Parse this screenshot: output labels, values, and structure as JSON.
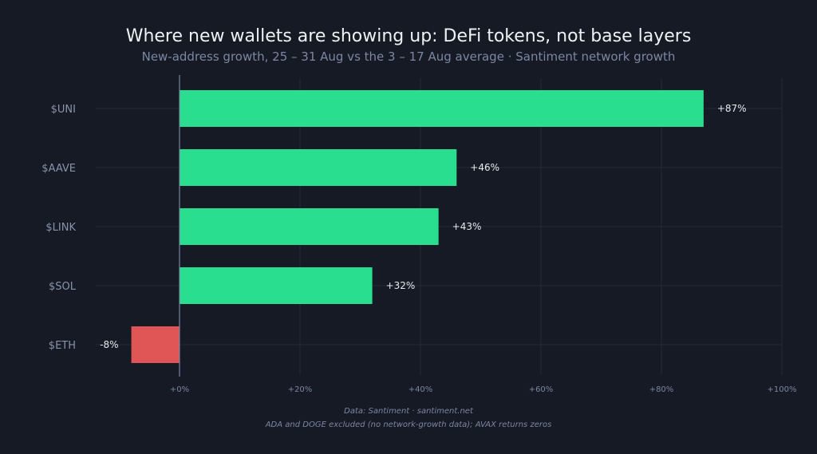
{
  "chart_data": {
    "type": "bar",
    "orientation": "horizontal",
    "title": "Where new wallets are showing up: DeFi tokens, not base layers",
    "subtitle": "New-address growth, 25 – 31 Aug vs the 3 – 17 Aug average · Santiment network growth",
    "categories": [
      "$UNI",
      "$AAVE",
      "$LINK",
      "$SOL",
      "$ETH"
    ],
    "values": [
      87,
      46,
      43,
      32,
      -8
    ],
    "data_labels": [
      "+87%",
      "+46%",
      "+43%",
      "+32%",
      "-8%"
    ],
    "x_ticks": [
      0,
      20,
      40,
      60,
      80,
      100
    ],
    "x_tick_labels": [
      "+0%",
      "+20%",
      "+40%",
      "+60%",
      "+80%",
      "+100%"
    ],
    "xlim": [
      -8,
      100
    ],
    "grid": true,
    "colors": {
      "positive": "#29df8f",
      "negative": "#e05656",
      "background": "#151a24",
      "grid": "#232a38",
      "zero_line": "#7d86a3"
    }
  },
  "footnotes": {
    "source": "Data: Santiment · santiment.net",
    "note": "ADA and DOGE excluded (no network-growth data); AVAX returns zeros"
  }
}
